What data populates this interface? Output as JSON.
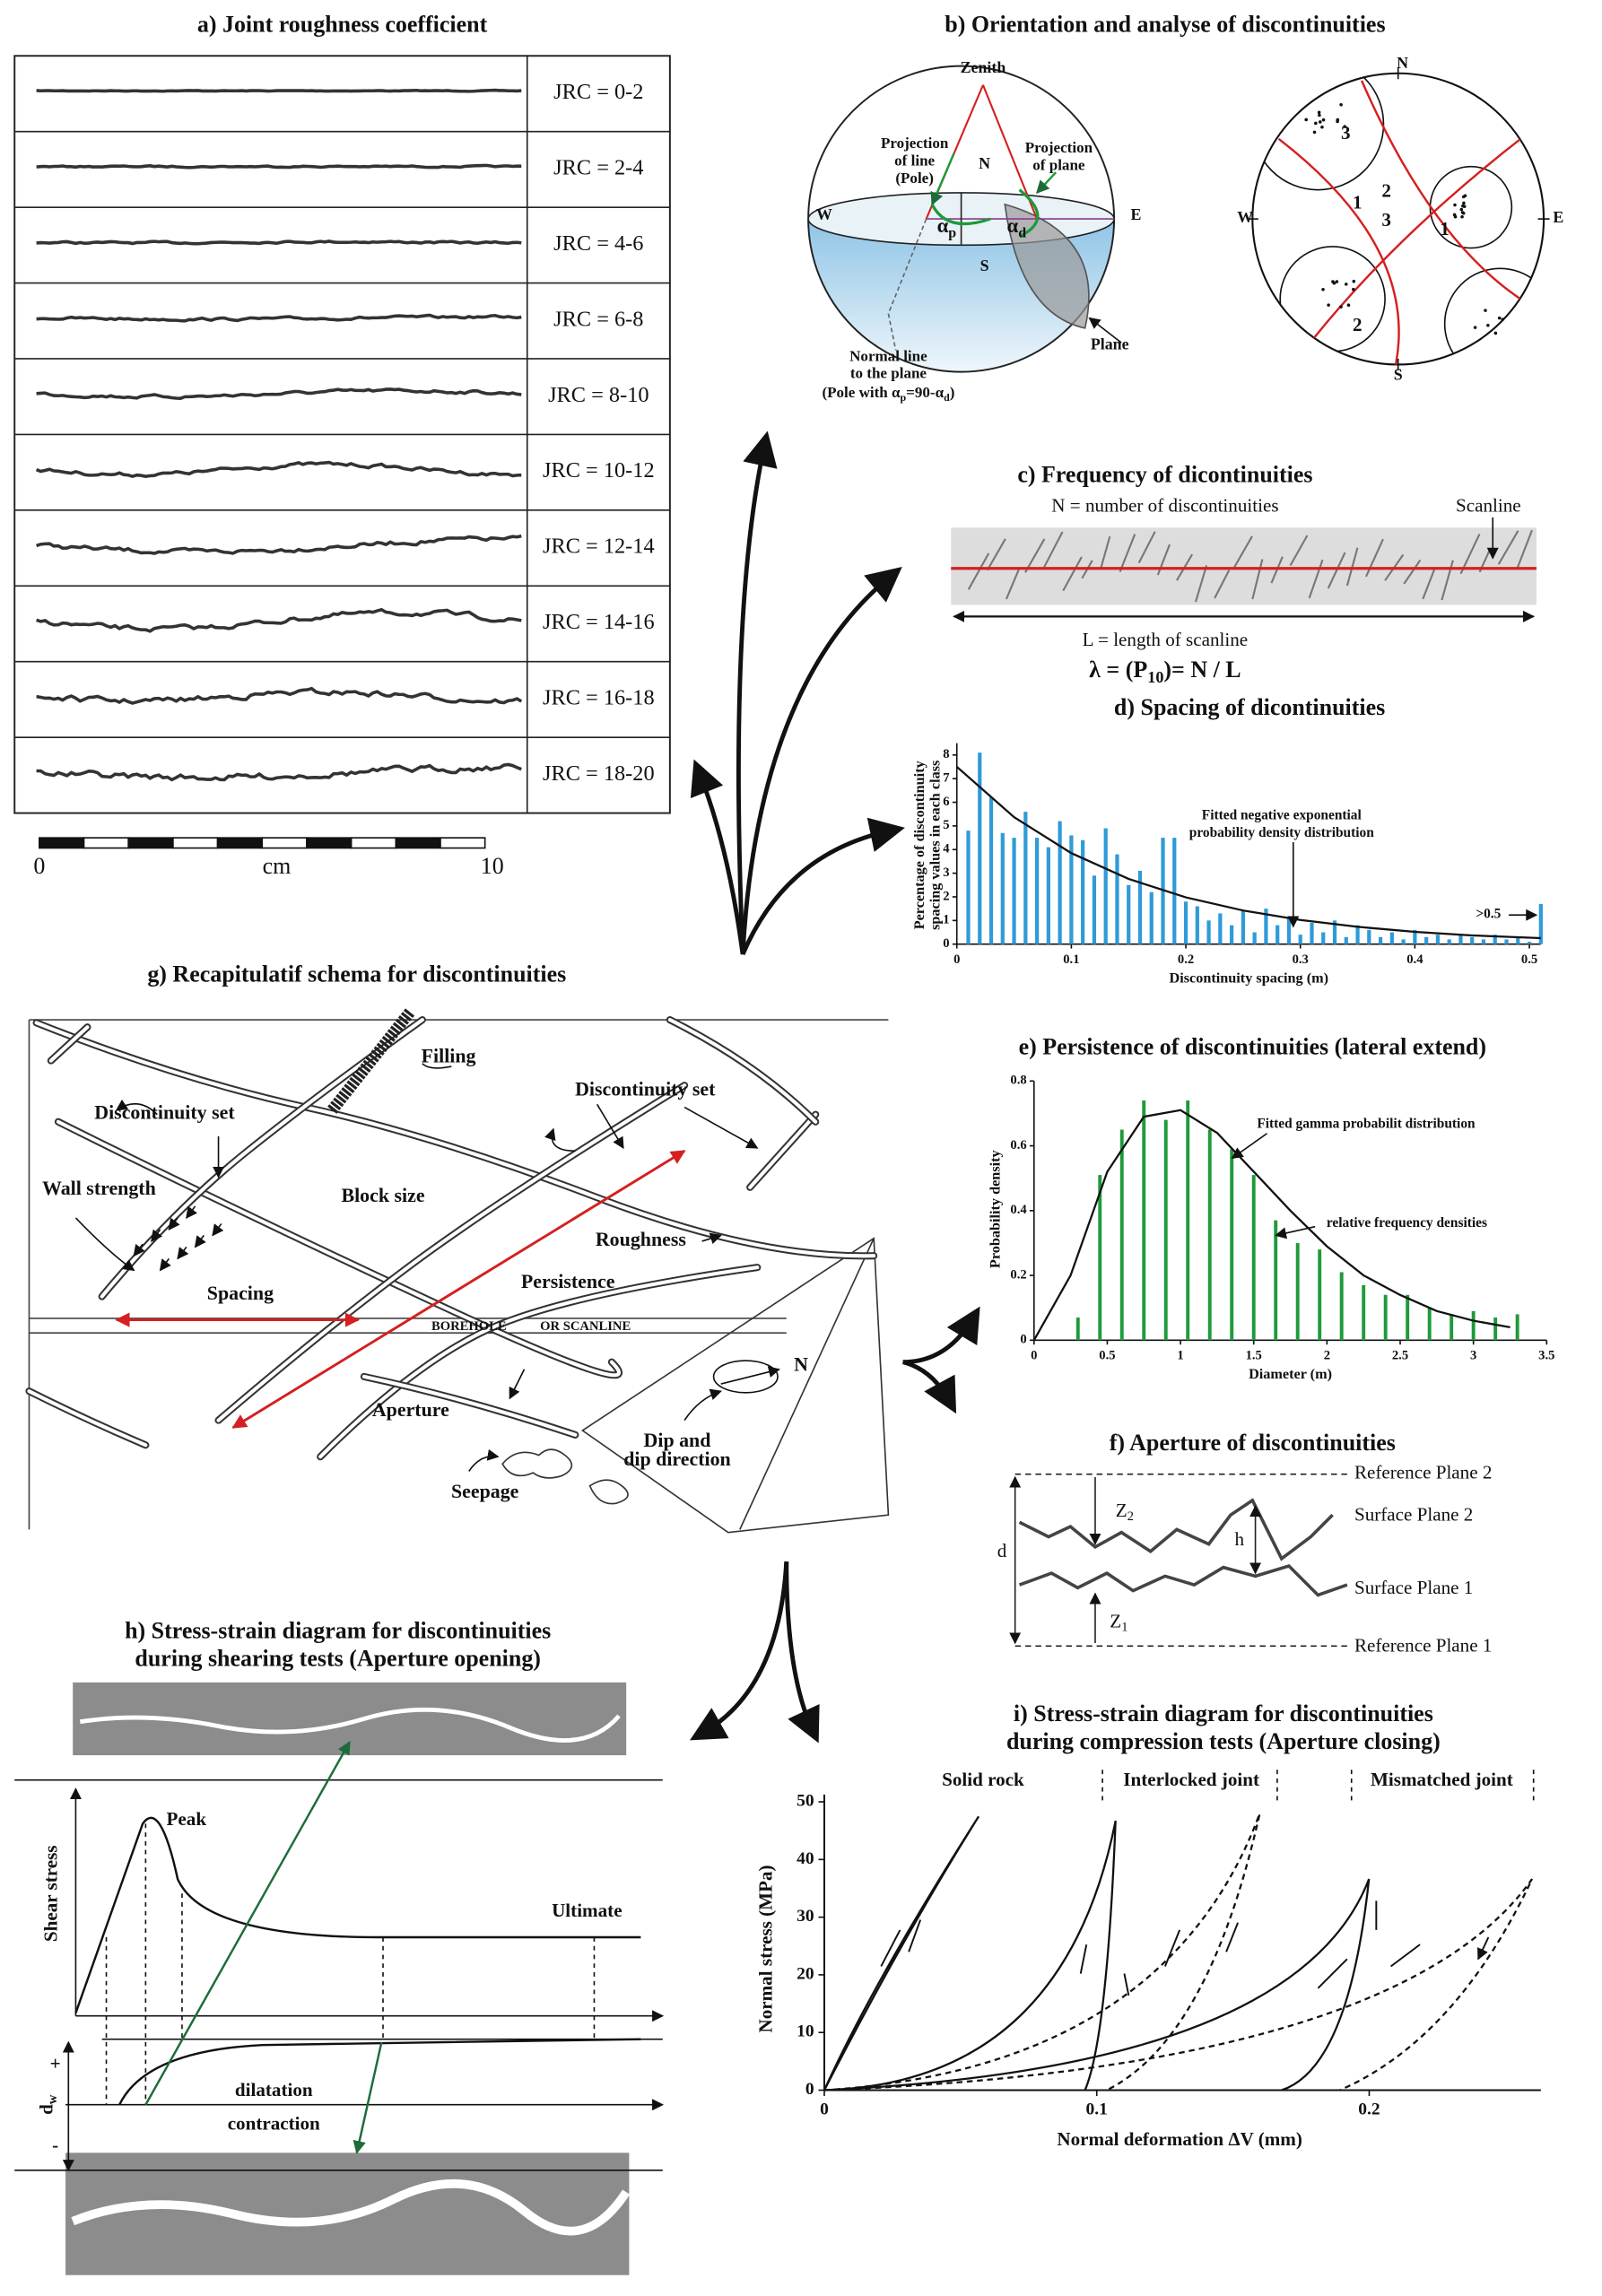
{
  "a": {
    "title": "a) Joint roughness coefficient",
    "rows": [
      "JRC = 0-2",
      "JRC = 2-4",
      "JRC = 4-6",
      "JRC = 6-8",
      "JRC = 8-10",
      "JRC = 10-12",
      "JRC = 12-14",
      "JRC = 14-16",
      "JRC = 16-18",
      "JRC = 18-20"
    ],
    "scale_start": 0,
    "scale_unit": "cm",
    "scale_end": 10
  },
  "b": {
    "title": "b) Orientation and analyse of discontinuities",
    "zenith": "Zenith",
    "n": "N",
    "s": "S",
    "w": "W",
    "e": "E",
    "pole_projection": [
      "Projection",
      "of line",
      "(Pole)"
    ],
    "plane_projection": [
      "Projection",
      "of plane"
    ],
    "alpha_p": {
      "base": "α",
      "sub": "p"
    },
    "alpha_d": {
      "base": "α",
      "sub": "d"
    },
    "plane": "Plane",
    "normal_line": [
      "Normal line",
      "to the plane"
    ],
    "pole_formula": {
      "base": "(Pole with α",
      "sub": "p",
      "tail": "=90-α",
      "sub2": "d",
      "tail2": ")"
    },
    "stereonet": {
      "n": "N",
      "s": "S",
      "w": "W",
      "e": "E",
      "clusters": [
        1,
        2,
        3
      ],
      "great_circles": [
        1,
        2,
        3
      ]
    }
  },
  "c": {
    "title": "c) Frequency of dicontinuities",
    "n_label": "N = number of discontinuities",
    "scanline": "Scanline",
    "l_label": "L = length of scanline",
    "formula": {
      "base": "λ = (P",
      "sub": "10",
      "tail": ")= N / L"
    }
  },
  "d": {
    "title": "d) Spacing of dicontinuities",
    "type": "bar",
    "color": "#2f9bd8",
    "x": [
      0.01,
      0.02,
      0.03,
      0.04,
      0.05,
      0.06,
      0.07,
      0.08,
      0.09,
      0.1,
      0.11,
      0.12,
      0.13,
      0.14,
      0.15,
      0.16,
      0.17,
      0.18,
      0.19,
      0.2,
      0.21,
      0.22,
      0.23,
      0.24,
      0.25,
      0.26,
      0.27,
      0.28,
      0.29,
      0.3,
      0.31,
      0.32,
      0.33,
      0.34,
      0.35,
      0.36,
      0.37,
      0.38,
      0.39,
      0.4,
      0.41,
      0.42,
      0.43,
      0.44,
      0.45,
      0.46,
      0.47,
      0.48,
      0.49,
      0.5,
      0.51
    ],
    "values": [
      4.8,
      8.1,
      6.2,
      4.7,
      4.5,
      5.6,
      4.5,
      4.1,
      5.2,
      4.6,
      4.4,
      2.9,
      4.9,
      3.8,
      2.5,
      3.1,
      2.2,
      4.5,
      4.5,
      1.8,
      1.6,
      1.0,
      1.3,
      0.8,
      1.4,
      0.5,
      1.5,
      0.8,
      1.1,
      0.4,
      0.9,
      0.5,
      1.0,
      0.3,
      0.8,
      0.6,
      0.3,
      0.5,
      0.2,
      0.6,
      0.3,
      0.4,
      0.2,
      0.4,
      0.3,
      0.2,
      0.4,
      0.2,
      0.3,
      0.1,
      1.7
    ],
    "fit": {
      "x": [
        0,
        0.05,
        0.1,
        0.15,
        0.2,
        0.25,
        0.3,
        0.35,
        0.4,
        0.45,
        0.51
      ],
      "y": [
        7.5,
        5.37,
        3.85,
        2.76,
        1.98,
        1.42,
        1.02,
        0.73,
        0.52,
        0.37,
        0.25
      ]
    },
    "xlim": [
      0,
      0.51
    ],
    "ylim": [
      0,
      8.5
    ],
    "xticks": [
      0,
      0.1,
      0.2,
      0.3,
      0.4,
      0.5
    ],
    "yticks": [
      0,
      1,
      2,
      3,
      4,
      5,
      6,
      7,
      8
    ],
    "xlabel": "Discontinuity spacing (m)",
    "ylabel": [
      "Percentage of discontinuity",
      "spacing values in each class"
    ],
    "annotation": [
      "Fitted negative exponential",
      "probability density distribution"
    ],
    "overflow_label": ">0.5"
  },
  "e": {
    "title": "e) Persistence of discontinuities (lateral extend)",
    "type": "bar",
    "color": "#1f9a3a",
    "x": [
      0.3,
      0.45,
      0.6,
      0.75,
      0.9,
      1.05,
      1.2,
      1.35,
      1.5,
      1.65,
      1.8,
      1.95,
      2.1,
      2.25,
      2.4,
      2.55,
      2.7,
      2.85,
      3,
      3.15,
      3.3
    ],
    "values": [
      0.07,
      0.51,
      0.65,
      0.74,
      0.68,
      0.74,
      0.65,
      0.59,
      0.51,
      0.37,
      0.3,
      0.28,
      0.21,
      0.17,
      0.14,
      0.14,
      0.1,
      0.08,
      0.09,
      0.07,
      0.08
    ],
    "fit": {
      "x": [
        0,
        0.25,
        0.5,
        0.75,
        1,
        1.25,
        1.5,
        1.75,
        2,
        2.25,
        2.5,
        2.75,
        3,
        3.25
      ],
      "y": [
        0,
        0.2,
        0.52,
        0.69,
        0.71,
        0.64,
        0.52,
        0.4,
        0.29,
        0.2,
        0.14,
        0.09,
        0.06,
        0.04
      ]
    },
    "xlim": [
      0,
      3.5
    ],
    "ylim": [
      0,
      0.8
    ],
    "xticks": [
      0,
      0.5,
      1,
      1.5,
      2,
      2.5,
      3,
      3.5
    ],
    "yticks": [
      0,
      0.2,
      0.4,
      0.6,
      0.8
    ],
    "xlabel": "Diameter (m)",
    "ylabel": "Probability density",
    "fit_label": "Fitted gamma probabilit distribution",
    "bars_label": "relative frequency densities"
  },
  "f": {
    "title": "f) Aperture of discontinuities",
    "reference_2": "Reference Plane 2",
    "surface_2": "Surface Plane 2",
    "surface_1": "Surface Plane 1",
    "reference_1": "Reference Plane 1",
    "d": "d",
    "h": "h",
    "z2": {
      "base": "Z",
      "sub": "2"
    },
    "z1": {
      "base": "Z",
      "sub": "1"
    }
  },
  "g": {
    "title": "g) Recapitulatif schema for discontinuities",
    "filling": "Filling",
    "set_left": "Discontinuity set",
    "set_right": "Discontinuity set",
    "wall_strength": "Wall strength",
    "block_size": "Block size",
    "roughness": "Roughness",
    "spacing": "Spacing",
    "persistence": "Persistence",
    "borehole": "BOREHOLE",
    "scanline": "OR SCANLINE",
    "aperture": "Aperture",
    "north": "N",
    "dip": [
      "Dip and",
      "dip direction"
    ],
    "seepage": "Seepage"
  },
  "h": {
    "title": [
      "h) Stress-strain diagram for discontinuities",
      "during shearing tests (Aperture opening)"
    ],
    "peak": "Peak",
    "ultimate": "Ultimate",
    "ylabel": "Shear stress",
    "dilatation": "dilatation",
    "contraction": "contraction",
    "dw": {
      "base": "d",
      "sub": "w"
    },
    "plus": "+",
    "minus": "-"
  },
  "i": {
    "title": [
      "i) Stress-strain diagram for discontinuities",
      "during compression tests (Aperture closing)"
    ],
    "solid": "Solid rock",
    "interlocked": "Interlocked joint",
    "mismatched": "Mismatched joint",
    "xlim": [
      0,
      0.263
    ],
    "ylim": [
      0,
      50
    ],
    "xticks": [
      0,
      0.1,
      0.2
    ],
    "yticks": [
      0,
      10,
      20,
      30,
      40,
      50
    ],
    "xlabel": "Normal deformation ΔV (mm)",
    "ylabel": "Normal stress (MPa)"
  }
}
